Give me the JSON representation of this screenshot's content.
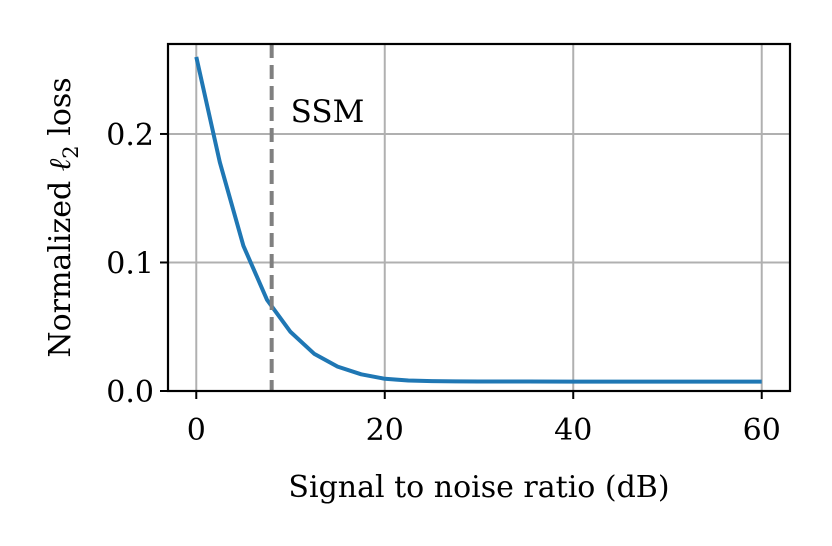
{
  "chart_data": {
    "type": "line",
    "title": "",
    "xlabel": "Signal to noise ratio (dB)",
    "ylabel_prefix": "Normalized ",
    "ylabel_symbol": "ℓ",
    "ylabel_subscript": "2",
    "ylabel_suffix": " loss",
    "xlim": [
      -3,
      63
    ],
    "ylim": [
      0,
      0.27
    ],
    "xticks": [
      0,
      20,
      40,
      60
    ],
    "xtick_labels": [
      "0",
      "20",
      "40",
      "60"
    ],
    "yticks": [
      0.0,
      0.1,
      0.2
    ],
    "ytick_labels": [
      "0.0",
      "0.1",
      "0.2"
    ],
    "grid": true,
    "series": [
      {
        "color": "#1f77b4",
        "x": [
          0,
          2.5,
          5,
          7.5,
          10,
          12.5,
          15,
          17.5,
          20,
          22.5,
          25,
          27.5,
          30,
          35,
          40,
          45,
          50,
          55,
          60
        ],
        "y": [
          0.26,
          0.178,
          0.113,
          0.071,
          0.046,
          0.029,
          0.019,
          0.013,
          0.0095,
          0.0082,
          0.0077,
          0.0075,
          0.0074,
          0.0074,
          0.0073,
          0.0073,
          0.0073,
          0.0073,
          0.0073
        ]
      }
    ],
    "annotations": [
      {
        "type": "vline",
        "x": 8,
        "style": "dashed",
        "color": "#808080",
        "label": "SSM"
      }
    ]
  }
}
